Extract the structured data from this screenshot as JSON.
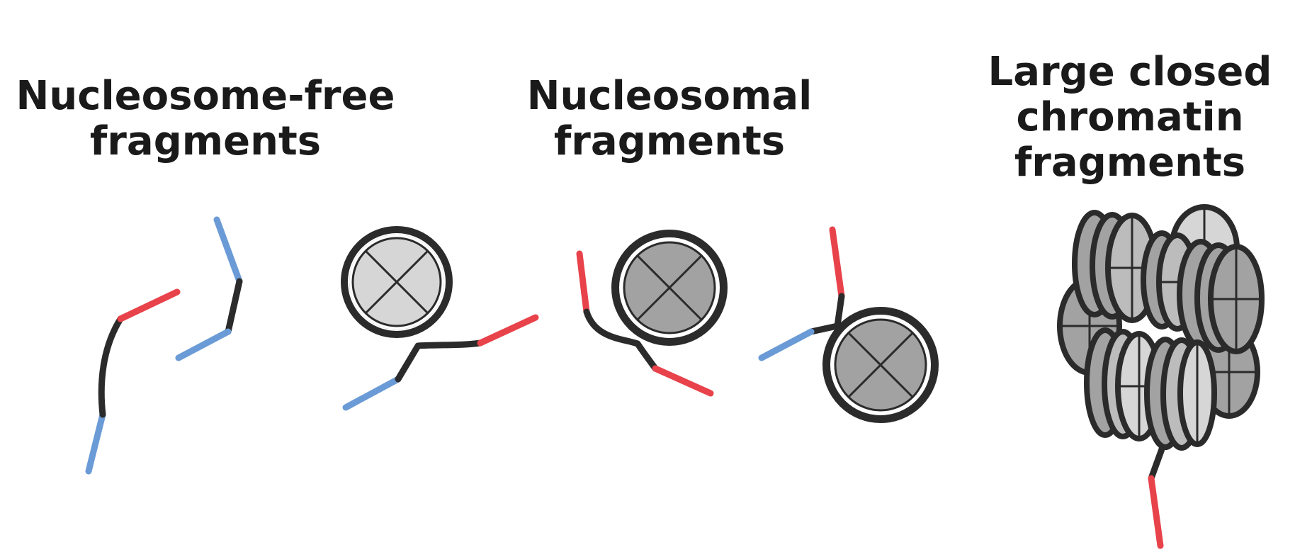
{
  "labels": {
    "nucleosome_free": [
      "Nucleosome-free",
      "fragments"
    ],
    "nucleosomal": [
      "Nucleosomal",
      "fragments"
    ],
    "large_closed": [
      "Large closed",
      "chromatin",
      "fragments"
    ]
  },
  "colors": {
    "dna": "#2b2b2b",
    "end_red": "#e8424a",
    "end_blue": "#6b9bd6",
    "histone_light": "#d6d6d6",
    "histone_dark": "#a2a2a2"
  }
}
